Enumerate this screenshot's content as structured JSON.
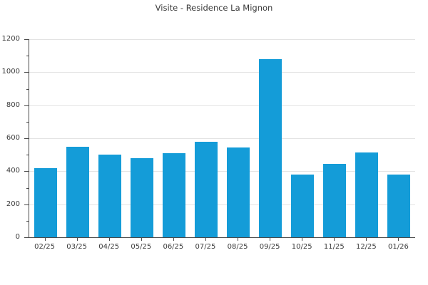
{
  "chart_data": {
    "type": "bar",
    "title": "Visite - Residence La Mignon",
    "categories": [
      "02/25",
      "03/25",
      "04/25",
      "05/25",
      "06/25",
      "07/25",
      "08/25",
      "09/25",
      "10/25",
      "11/25",
      "12/25",
      "01/26"
    ],
    "values": [
      420,
      550,
      500,
      480,
      510,
      580,
      545,
      1080,
      380,
      445,
      515,
      380
    ],
    "xlabel": "",
    "ylabel": "",
    "ylim": [
      0,
      1200
    ],
    "y_major_ticks": [
      0,
      200,
      400,
      600,
      800,
      1000,
      1200
    ],
    "y_minor_tick_step": 100,
    "grid": "horizontal-major-only",
    "legend": false,
    "colors": {
      "bar": "#149cd8",
      "axis": "#4a4a4a",
      "grid": "#e3e3e3",
      "tick_text": "#3b3b3b",
      "title_text": "#3a3a3a",
      "background": "#ffffff"
    }
  }
}
